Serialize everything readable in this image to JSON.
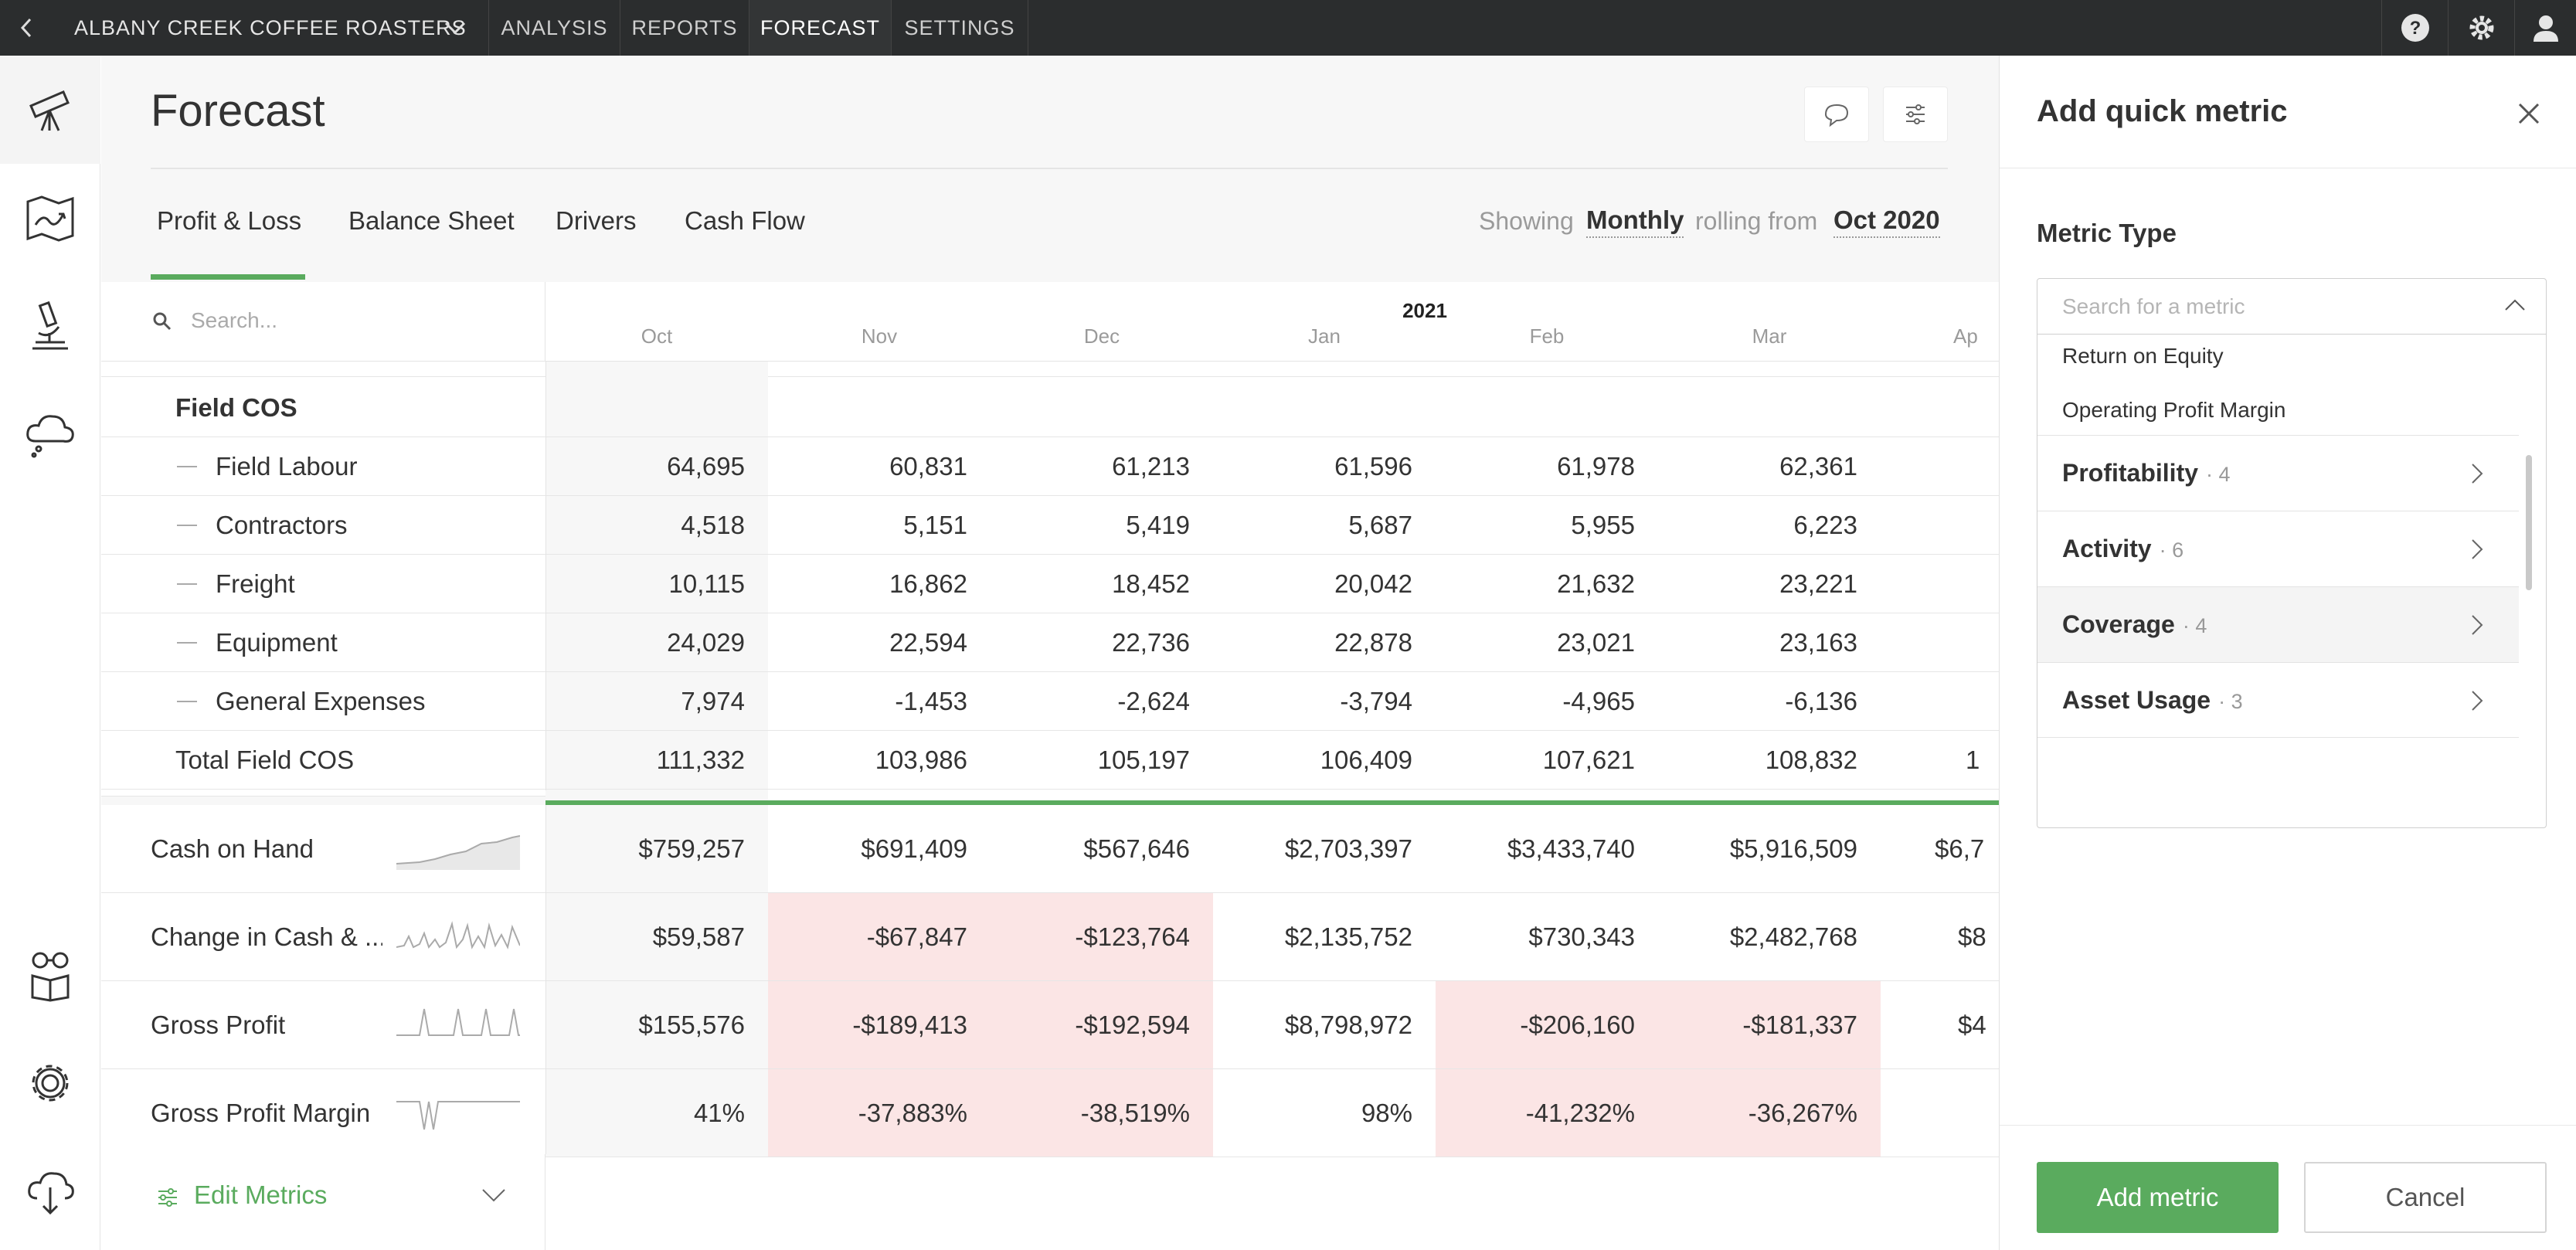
{
  "topbar": {
    "company": "ALBANY CREEK COFFEE ROASTERS",
    "nav": [
      "ANALYSIS",
      "REPORTS",
      "FORECAST",
      "SETTINGS"
    ],
    "active_nav": "FORECAST"
  },
  "sidebar": {
    "items": [
      "telescope-icon",
      "map-icon",
      "microscope-icon",
      "cloud-icon",
      "reader-icon",
      "gear-icon",
      "cloud-download-icon"
    ]
  },
  "page": {
    "title": "Forecast",
    "tabs": [
      "Profit & Loss",
      "Balance Sheet",
      "Drivers",
      "Cash Flow"
    ],
    "active_tab": "Profit & Loss",
    "showing_label": "Showing",
    "period": "Monthly",
    "rolling_label": "rolling from",
    "start": "Oct 2020"
  },
  "table": {
    "search_placeholder": "Search...",
    "year_label": "2021",
    "months": [
      "Oct",
      "Nov",
      "Dec",
      "Jan",
      "Feb",
      "Mar",
      "Ap"
    ],
    "section_header": "Field COS",
    "rows": [
      {
        "label": "Field Labour",
        "values": [
          "64,695",
          "60,831",
          "61,213",
          "61,596",
          "61,978",
          "62,361"
        ]
      },
      {
        "label": "Contractors",
        "values": [
          "4,518",
          "5,151",
          "5,419",
          "5,687",
          "5,955",
          "6,223"
        ]
      },
      {
        "label": "Freight",
        "values": [
          "10,115",
          "16,862",
          "18,452",
          "20,042",
          "21,632",
          "23,221"
        ]
      },
      {
        "label": "Equipment",
        "values": [
          "24,029",
          "22,594",
          "22,736",
          "22,878",
          "23,021",
          "23,163"
        ]
      },
      {
        "label": "General Expenses",
        "values": [
          "7,974",
          "-1,453",
          "-2,624",
          "-3,794",
          "-4,965",
          "-6,136"
        ]
      }
    ],
    "total": {
      "label": "Total Field COS",
      "values": [
        "111,332",
        "103,986",
        "105,197",
        "106,409",
        "107,621",
        "108,832",
        "1"
      ]
    }
  },
  "metrics": [
    {
      "label": "Cash on Hand",
      "values": [
        "$759,257",
        "$691,409",
        "$567,646",
        "$2,703,397",
        "$3,433,740",
        "$5,916,509",
        "$6,7"
      ],
      "negative": [
        false,
        false,
        false,
        false,
        false,
        false,
        false
      ]
    },
    {
      "label": "Change in Cash & ...",
      "values": [
        "$59,587",
        "-$67,847",
        "-$123,764",
        "$2,135,752",
        "$730,343",
        "$2,482,768",
        "$8"
      ],
      "negative": [
        false,
        true,
        true,
        false,
        false,
        false,
        false
      ]
    },
    {
      "label": "Gross Profit",
      "values": [
        "$155,576",
        "-$189,413",
        "-$192,594",
        "$8,798,972",
        "-$206,160",
        "-$181,337",
        "$4"
      ],
      "negative": [
        false,
        true,
        true,
        false,
        true,
        true,
        false
      ]
    },
    {
      "label": "Gross Profit Margin",
      "values": [
        "41%",
        "-37,883%",
        "-38,519%",
        "98%",
        "-41,232%",
        "-36,267%",
        ""
      ],
      "negative": [
        false,
        true,
        true,
        false,
        true,
        true,
        false
      ]
    }
  ],
  "edit_metrics": {
    "label": "Edit Metrics"
  },
  "panel": {
    "title": "Add quick metric",
    "metric_type_label": "Metric Type",
    "search_placeholder": "Search for a metric",
    "plain_options": [
      "Return on Equity",
      "Operating Profit Margin"
    ],
    "groups": [
      {
        "name": "Profitability",
        "count": "· 4"
      },
      {
        "name": "Activity",
        "count": "· 6"
      },
      {
        "name": "Coverage",
        "count": "· 4"
      },
      {
        "name": "Asset Usage",
        "count": "· 3"
      }
    ],
    "add_button": "Add metric",
    "cancel_button": "Cancel"
  },
  "colors": {
    "accent_green": "#5aab5e",
    "topbar": "#2b2d2e",
    "negative_bg": "#fbe5e5"
  }
}
